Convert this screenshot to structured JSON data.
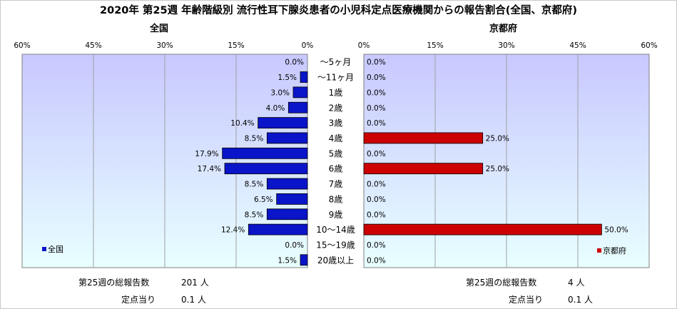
{
  "title": "2020年 第25週 年齢階級別 流行性耳下腺炎患者の小児科定点医療機関からの報告割合(全国、京都府)",
  "categories": [
    "～5ヶ月",
    "～11ヶ月",
    "1歳",
    "2歳",
    "3歳",
    "4歳",
    "5歳",
    "6歳",
    "7歳",
    "8歳",
    "9歳",
    "10～14歳",
    "15～19歳",
    "20歳以上"
  ],
  "left_panel": {
    "title": "全国",
    "legend": "全国",
    "ticks": [
      "60%",
      "45%",
      "30%",
      "15%",
      "0%"
    ],
    "total_label": "第25週の総報告数",
    "total_value": "201 人",
    "per_site_label": "定点当り",
    "per_site_value": "0.1 人"
  },
  "right_panel": {
    "title": "京都府",
    "legend": "京都府",
    "ticks": [
      "0%",
      "15%",
      "30%",
      "45%",
      "60%"
    ],
    "total_label": "第25週の総報告数",
    "total_value": "4 人",
    "per_site_label": "定点当り",
    "per_site_value": "0.1 人"
  },
  "colors": {
    "national_bar": "#0a14c8",
    "kyoto_bar": "#cc0000",
    "plot_top": "#c8c8ff",
    "plot_bottom": "#e8ffff"
  },
  "chart_data": {
    "type": "bar",
    "orientation": "horizontal",
    "categories": [
      "～5ヶ月",
      "～11ヶ月",
      "1歳",
      "2歳",
      "3歳",
      "4歳",
      "5歳",
      "6歳",
      "7歳",
      "8歳",
      "9歳",
      "10～14歳",
      "15～19歳",
      "20歳以上"
    ],
    "series": [
      {
        "name": "全国",
        "values": [
          0.0,
          1.5,
          3.0,
          4.0,
          10.4,
          8.5,
          17.9,
          17.4,
          8.5,
          6.5,
          8.5,
          12.4,
          0.0,
          1.5
        ],
        "labels": [
          "0.0%",
          "1.5%",
          "3.0%",
          "4.0%",
          "10.4%",
          "8.5%",
          "17.9%",
          "17.4%",
          "8.5%",
          "6.5%",
          "8.5%",
          "12.4%",
          "0.0%",
          "1.5%"
        ]
      },
      {
        "name": "京都府",
        "values": [
          0.0,
          0.0,
          0.0,
          0.0,
          0.0,
          25.0,
          0.0,
          25.0,
          0.0,
          0.0,
          0.0,
          50.0,
          0.0,
          0.0
        ],
        "labels": [
          "0.0%",
          "0.0%",
          "0.0%",
          "0.0%",
          "0.0%",
          "25.0%",
          "0.0%",
          "25.0%",
          "0.0%",
          "0.0%",
          "0.0%",
          "50.0%",
          "0.0%",
          "0.0%"
        ]
      }
    ],
    "xlim": [
      0,
      60
    ],
    "grid": true
  }
}
